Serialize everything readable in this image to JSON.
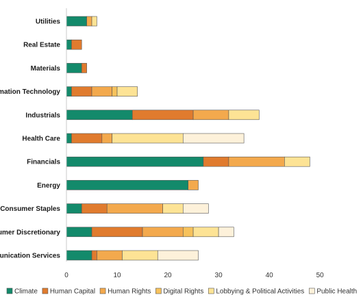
{
  "chart_data": {
    "type": "bar",
    "orientation": "horizontal",
    "stacked": true,
    "title": "",
    "xlabel": "",
    "ylabel": "",
    "xlim": [
      0,
      52
    ],
    "x_ticks": [
      "0",
      "10",
      "20",
      "30",
      "40",
      "50"
    ],
    "grid": false,
    "legend_position": "bottom",
    "categories": [
      "Utilities",
      "Real Estate",
      "Materials",
      "Information Technology",
      "Industrials",
      "Health Care",
      "Financials",
      "Energy",
      "Consumer Staples",
      "Consumer Discretionary",
      "Communication Services"
    ],
    "series": [
      {
        "name": "Climate",
        "color": "#138a6b",
        "values": [
          4,
          1,
          3,
          1,
          13,
          1,
          27,
          24,
          3,
          5,
          5
        ]
      },
      {
        "name": "Human Capital",
        "color": "#e07b2e",
        "values": [
          0,
          2,
          1,
          4,
          12,
          6,
          5,
          0,
          5,
          10,
          1
        ]
      },
      {
        "name": "Human Rights",
        "color": "#f3a94d",
        "values": [
          1,
          0,
          0,
          4,
          7,
          2,
          11,
          2,
          11,
          8,
          5
        ]
      },
      {
        "name": "Digital Rights",
        "color": "#f7c25c",
        "values": [
          0,
          0,
          0,
          1,
          0,
          0,
          0,
          0,
          0,
          2,
          0
        ]
      },
      {
        "name": "Lobbying & Political Activities",
        "color": "#fde395",
        "values": [
          1,
          0,
          0,
          4,
          6,
          14,
          5,
          0,
          4,
          5,
          7
        ]
      },
      {
        "name": "Public Health",
        "color": "#fdf1da",
        "values": [
          0,
          0,
          0,
          0,
          0,
          12,
          0,
          0,
          5,
          3,
          8
        ]
      }
    ]
  }
}
